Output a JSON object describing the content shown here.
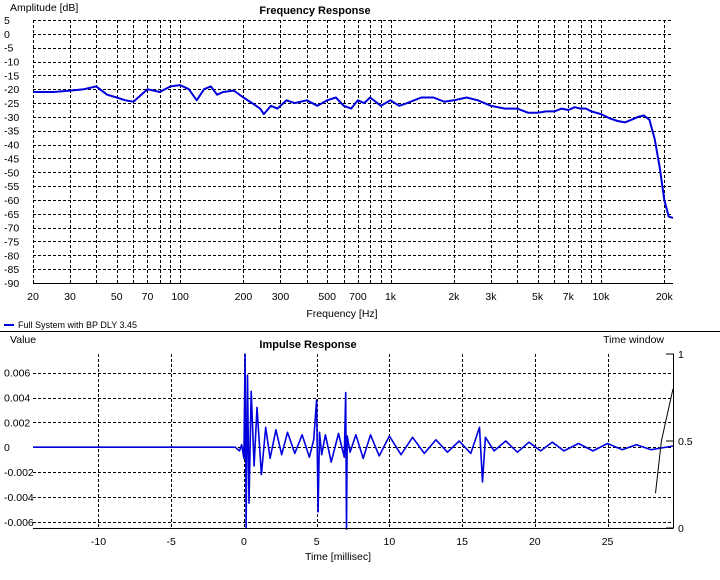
{
  "chart_data": [
    {
      "type": "line",
      "title": "Frequency Response",
      "xlabel": "Frequency [Hz]",
      "ylabel": "Amplitude [dB]",
      "x_scale": "log",
      "xlim": [
        20,
        22000
      ],
      "ylim": [
        -90,
        5
      ],
      "grid": true,
      "x_ticks": [
        {
          "v": 20,
          "label": "20"
        },
        {
          "v": 30,
          "label": "30"
        },
        {
          "v": 50,
          "label": "50"
        },
        {
          "v": 70,
          "label": "70"
        },
        {
          "v": 100,
          "label": "100"
        },
        {
          "v": 200,
          "label": "200"
        },
        {
          "v": 300,
          "label": "300"
        },
        {
          "v": 500,
          "label": "500"
        },
        {
          "v": 700,
          "label": "700"
        },
        {
          "v": 1000,
          "label": "1k"
        },
        {
          "v": 2000,
          "label": "2k"
        },
        {
          "v": 3000,
          "label": "3k"
        },
        {
          "v": 5000,
          "label": "5k"
        },
        {
          "v": 7000,
          "label": "7k"
        },
        {
          "v": 10000,
          "label": "10k"
        },
        {
          "v": 20000,
          "label": "20k"
        }
      ],
      "y_ticks": [
        5,
        0,
        -5,
        -10,
        -15,
        -20,
        -25,
        -30,
        -35,
        -40,
        -45,
        -50,
        -55,
        -60,
        -65,
        -70,
        -75,
        -80,
        -85,
        -90
      ],
      "legend": {
        "position": "bottom-left",
        "entries": [
          "Full System with BP DLY 3.45"
        ]
      },
      "series": [
        {
          "name": "Full System with BP DLY 3.45",
          "color": "#0000dd",
          "x": [
            20,
            25,
            30,
            35,
            40,
            45,
            50,
            55,
            60,
            70,
            75,
            80,
            90,
            100,
            110,
            120,
            130,
            140,
            150,
            160,
            180,
            200,
            220,
            240,
            250,
            270,
            290,
            300,
            320,
            350,
            400,
            450,
            500,
            550,
            600,
            650,
            700,
            750,
            800,
            900,
            1000,
            1100,
            1200,
            1400,
            1600,
            1800,
            2000,
            2300,
            2600,
            3000,
            3500,
            4000,
            4500,
            5000,
            5500,
            6000,
            6500,
            7000,
            7500,
            8000,
            8500,
            9000,
            10000,
            11000,
            12000,
            13000,
            14000,
            15000,
            16000,
            17000,
            18000,
            19000,
            20000,
            21000,
            22000
          ],
          "values": [
            -21,
            -21,
            -20.5,
            -20,
            -19,
            -22,
            -23,
            -24,
            -24.5,
            -20,
            -20.5,
            -21,
            -19,
            -18.5,
            -20,
            -24,
            -20,
            -19,
            -22,
            -21,
            -20.5,
            -23,
            -25,
            -27,
            -29,
            -26,
            -27,
            -26,
            -24,
            -25,
            -24,
            -26,
            -24,
            -23,
            -26,
            -27,
            -24,
            -25,
            -23,
            -26,
            -24,
            -26,
            -25,
            -23,
            -23,
            -24.5,
            -24,
            -23,
            -24,
            -26,
            -27,
            -27,
            -28.5,
            -28.5,
            -28,
            -28,
            -27,
            -27.5,
            -26.5,
            -27,
            -27,
            -28,
            -29,
            -30.5,
            -31.5,
            -32,
            -31,
            -30,
            -29.5,
            -31,
            -38,
            -48,
            -60,
            -66,
            -66.5
          ]
        }
      ]
    },
    {
      "type": "line",
      "title": "Impulse Response",
      "xlabel": "Time [millisec]",
      "ylabel": "Value",
      "y2label": "Time window",
      "xlim": [
        -14.5,
        29.5
      ],
      "ylim": [
        -0.0065,
        0.0075
      ],
      "y2lim": [
        0,
        1
      ],
      "grid": true,
      "x_ticks": [
        -10,
        -5,
        0,
        5,
        10,
        15,
        20,
        25
      ],
      "y_ticks": [
        0.006,
        0.004,
        0.002,
        0,
        -0.002,
        -0.004,
        -0.006
      ],
      "y_tick_labels": [
        "0.006",
        "0.004",
        "0.002",
        "0",
        "-0.002",
        "-0.004",
        "-0.006"
      ],
      "y2_ticks": [
        1,
        0.5,
        0
      ],
      "y2_tick_labels": [
        "1",
        "0.5",
        "0"
      ],
      "series": [
        {
          "name": "",
          "color": "#0000dd",
          "x": [
            -14.5,
            -0.6,
            -0.3,
            -0.15,
            0,
            0.08,
            0.15,
            0.25,
            0.35,
            0.5,
            0.7,
            0.9,
            1.2,
            1.5,
            1.8,
            2.2,
            2.6,
            3.0,
            3.5,
            4.0,
            4.5,
            4.8,
            5.0,
            5.1,
            5.2,
            5.35,
            5.6,
            6.0,
            6.5,
            6.9,
            7.0,
            7.05,
            7.1,
            7.3,
            7.7,
            8.2,
            8.7,
            9.3,
            10.0,
            10.8,
            11.6,
            12.4,
            13.2,
            14.0,
            14.8,
            15.6,
            16.2,
            16.4,
            16.6,
            17.2,
            18.0,
            18.8,
            19.6,
            20.4,
            21.2,
            22.0,
            23.0,
            24.0,
            25.0,
            26.0,
            27.0,
            28.0,
            29.5
          ],
          "values": [
            0.0,
            0.0,
            -0.0003,
            0.0002,
            -0.0009,
            0.0075,
            -0.0065,
            0.0058,
            -0.0045,
            0.0045,
            -0.0015,
            0.0032,
            -0.0022,
            0.0016,
            -0.0009,
            0.0014,
            -0.0006,
            0.0012,
            -0.0005,
            0.001,
            -0.0008,
            0.0006,
            0.0038,
            -0.0052,
            0.0012,
            -0.0006,
            0.001,
            -0.0012,
            0.0011,
            -0.0008,
            0.0044,
            -0.0066,
            0.0009,
            -0.0004,
            0.001,
            -0.0009,
            0.001,
            -0.0007,
            0.0009,
            -0.0006,
            0.0008,
            -0.0005,
            0.0006,
            -0.0004,
            0.0005,
            -0.0005,
            0.0016,
            -0.0028,
            0.0008,
            -0.0003,
            0.0005,
            -0.0004,
            0.0004,
            -0.0003,
            0.0004,
            -0.0003,
            0.0003,
            -0.0003,
            0.0003,
            -0.0002,
            0.0002,
            -0.0002,
            0.0001
          ]
        },
        {
          "name": "",
          "color": "#000000",
          "axis": "y2",
          "x": [
            28.3,
            28.7,
            29.5
          ],
          "values": [
            0.2,
            0.5,
            0.8
          ]
        }
      ]
    }
  ]
}
